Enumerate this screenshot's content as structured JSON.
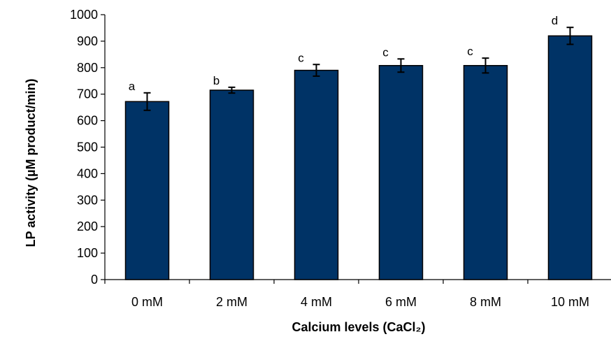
{
  "chart_data": {
    "type": "bar",
    "categories": [
      "0 mM",
      "2 mM",
      "4 mM",
      "6 mM",
      "8 mM",
      "10 mM"
    ],
    "series": [
      {
        "values": [
          672,
          715,
          790,
          808,
          808,
          920
        ],
        "errors": [
          33,
          11,
          22,
          25,
          28,
          32
        ],
        "significance": [
          "a",
          "b",
          "c",
          "c",
          "c",
          "d"
        ]
      }
    ],
    "ylabel": "LP activity (µM product/min)",
    "xlabel": "Calcium levels (CaCl₂)",
    "ylim": [
      0,
      1000
    ],
    "yticks": [
      0,
      100,
      200,
      300,
      400,
      500,
      600,
      700,
      800,
      900,
      1000
    ],
    "ytick_labels": [
      "0",
      "100",
      "200",
      "300",
      "400",
      "500",
      "600",
      "700",
      "800",
      "900",
      "1000"
    ],
    "grid": false,
    "legend": "none",
    "colors": {
      "bar": "#003366",
      "bar_edge": "#000000",
      "axis": "#000000"
    }
  }
}
